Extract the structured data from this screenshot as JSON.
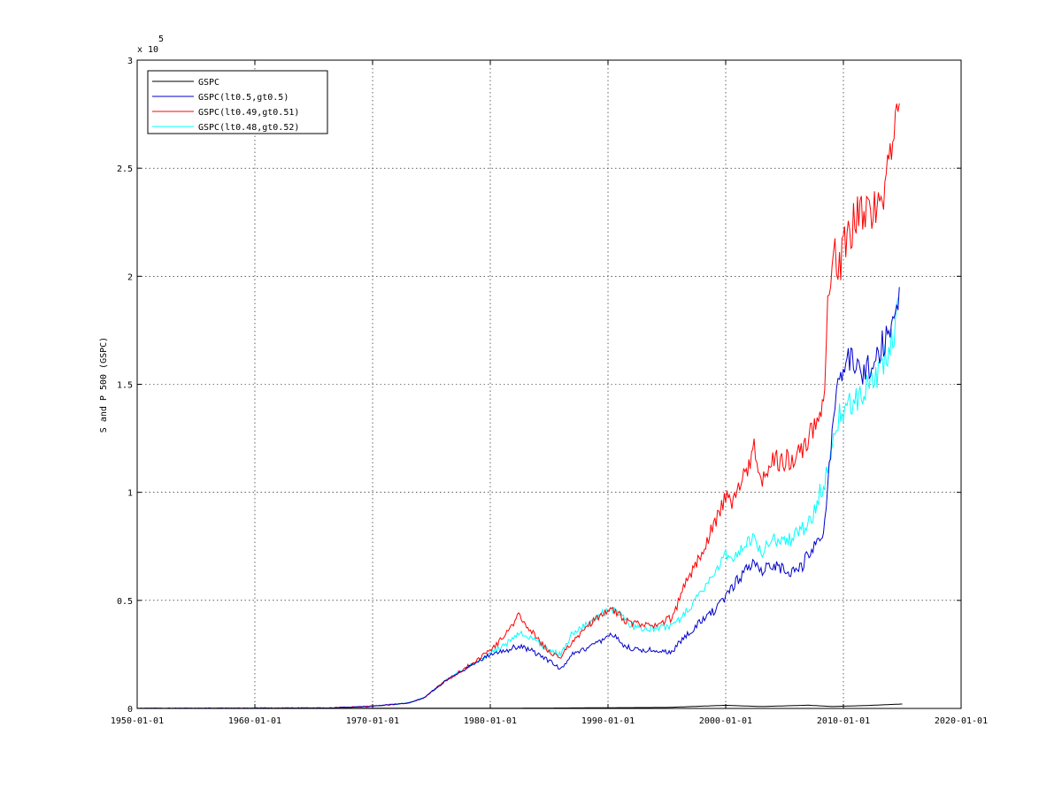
{
  "chart_data": {
    "type": "line",
    "title": "",
    "xlabel": "",
    "ylabel": "S and P 500 (GSPC)",
    "y_exponent_label": "x 10",
    "y_exponent": "5",
    "grid": true,
    "legend_position": "top-left",
    "xlim": [
      "1950-01-01",
      "2020-01-01"
    ],
    "ylim": [
      0,
      3
    ],
    "x_ticks": [
      "1950-01-01",
      "1960-01-01",
      "1970-01-01",
      "1980-01-01",
      "1990-01-01",
      "2000-01-01",
      "2010-01-01",
      "2020-01-01"
    ],
    "y_ticks": [
      "0",
      "0.5",
      "1",
      "1.5",
      "2",
      "2.5",
      "3"
    ],
    "series": [
      {
        "name": "GSPC",
        "color": "#000000",
        "x": [
          "1950-01-01",
          "1960-01-01",
          "1970-01-01",
          "1980-01-01",
          "1985-01-01",
          "1990-01-01",
          "1995-01-01",
          "2000-01-01",
          "2003-01-01",
          "2007-01-01",
          "2009-01-01",
          "2012-01-01",
          "2015-01-01"
        ],
        "y": [
          0.0002,
          0.0006,
          0.0009,
          0.0011,
          0.0017,
          0.0033,
          0.0046,
          0.0146,
          0.0088,
          0.015,
          0.009,
          0.0135,
          0.0206
        ]
      },
      {
        "name": "GSPC(lt0.5,gt0.5)",
        "color": "#0000cc",
        "x": [
          "1950-01-01",
          "1966-01-01",
          "1970-01-01",
          "1973-01-01",
          "1974-06-01",
          "1976-01-01",
          "1977-06-01",
          "1979-01-01",
          "1980-06-01",
          "1981-06-01",
          "1982-06-01",
          "1983-06-01",
          "1985-01-01",
          "1986-01-01",
          "1987-01-01",
          "1988-01-01",
          "1989-06-01",
          "1990-06-01",
          "1991-06-01",
          "1992-06-01",
          "1994-01-01",
          "1995-06-01",
          "1996-06-01",
          "1997-06-01",
          "1998-06-01",
          "1999-06-01",
          "2000-01-01",
          "2000-06-01",
          "2001-06-01",
          "2002-06-01",
          "2003-01-01",
          "2004-01-01",
          "2005-06-01",
          "2006-06-01",
          "2007-06-01",
          "2008-01-01",
          "2008-06-01",
          "2008-09-01",
          "2009-03-01",
          "2009-09-01",
          "2010-06-01",
          "2011-06-01",
          "2012-06-01",
          "2013-06-01",
          "2014-06-01",
          "2014-10-01"
        ],
        "y": [
          0,
          0.002,
          0.01,
          0.025,
          0.05,
          0.12,
          0.17,
          0.22,
          0.26,
          0.27,
          0.29,
          0.27,
          0.22,
          0.18,
          0.25,
          0.27,
          0.31,
          0.34,
          0.29,
          0.27,
          0.27,
          0.26,
          0.33,
          0.38,
          0.43,
          0.47,
          0.52,
          0.55,
          0.62,
          0.69,
          0.63,
          0.67,
          0.63,
          0.65,
          0.75,
          0.78,
          0.87,
          1.05,
          1.35,
          1.5,
          1.62,
          1.55,
          1.6,
          1.7,
          1.8,
          1.95
        ]
      },
      {
        "name": "GSPC(lt0.49,gt0.51)",
        "color": "#ff0000",
        "x": [
          "1950-01-01",
          "1966-01-01",
          "1970-01-01",
          "1973-01-01",
          "1974-06-01",
          "1976-01-01",
          "1977-06-01",
          "1979-01-01",
          "1980-06-01",
          "1981-06-01",
          "1982-06-01",
          "1983-06-01",
          "1985-01-01",
          "1986-01-01",
          "1987-01-01",
          "1988-01-01",
          "1989-06-01",
          "1990-06-01",
          "1991-06-01",
          "1992-06-01",
          "1994-01-01",
          "1995-06-01",
          "1996-06-01",
          "1997-06-01",
          "1998-06-01",
          "1999-06-01",
          "2000-01-01",
          "2000-06-01",
          "2001-06-01",
          "2002-06-01",
          "2003-01-01",
          "2004-01-01",
          "2005-06-01",
          "2006-06-01",
          "2007-06-01",
          "2008-01-01",
          "2008-06-01",
          "2008-09-01",
          "2009-03-01",
          "2009-09-01",
          "2010-06-01",
          "2011-06-01",
          "2012-06-01",
          "2013-06-01",
          "2014-06-01",
          "2014-10-01"
        ],
        "y": [
          0,
          0.002,
          0.01,
          0.025,
          0.05,
          0.12,
          0.17,
          0.23,
          0.29,
          0.35,
          0.43,
          0.36,
          0.26,
          0.24,
          0.31,
          0.37,
          0.43,
          0.46,
          0.41,
          0.39,
          0.38,
          0.42,
          0.55,
          0.67,
          0.78,
          0.9,
          0.98,
          0.95,
          1.05,
          1.2,
          1.05,
          1.15,
          1.15,
          1.2,
          1.3,
          1.35,
          1.5,
          1.85,
          2.1,
          2.05,
          2.2,
          2.3,
          2.3,
          2.4,
          2.7,
          2.8
        ]
      },
      {
        "name": "GSPC(lt0.48,gt0.52)",
        "color": "#00ffff",
        "x": [
          "1950-01-01",
          "1966-01-01",
          "1970-01-01",
          "1973-01-01",
          "1974-06-01",
          "1976-01-01",
          "1977-06-01",
          "1979-01-01",
          "1980-06-01",
          "1981-06-01",
          "1982-06-01",
          "1983-06-01",
          "1985-01-01",
          "1986-01-01",
          "1987-01-01",
          "1988-01-01",
          "1989-06-01",
          "1990-06-01",
          "1991-06-01",
          "1992-06-01",
          "1994-01-01",
          "1995-06-01",
          "1996-06-01",
          "1997-06-01",
          "1998-06-01",
          "1999-06-01",
          "2000-01-01",
          "2000-06-01",
          "2001-06-01",
          "2002-06-01",
          "2003-01-01",
          "2004-01-01",
          "2005-06-01",
          "2006-06-01",
          "2007-06-01",
          "2008-01-01",
          "2008-06-01",
          "2008-09-01",
          "2009-03-01",
          "2009-09-01",
          "2010-06-01",
          "2011-06-01",
          "2012-06-01",
          "2013-06-01",
          "2014-06-01",
          "2014-10-01"
        ],
        "y": [
          0,
          0.002,
          0.01,
          0.025,
          0.05,
          0.12,
          0.17,
          0.22,
          0.27,
          0.3,
          0.35,
          0.33,
          0.27,
          0.25,
          0.35,
          0.38,
          0.44,
          0.46,
          0.41,
          0.37,
          0.37,
          0.38,
          0.43,
          0.5,
          0.57,
          0.65,
          0.72,
          0.7,
          0.74,
          0.8,
          0.72,
          0.78,
          0.78,
          0.82,
          0.9,
          1.0,
          1.05,
          1.1,
          1.25,
          1.35,
          1.4,
          1.45,
          1.5,
          1.6,
          1.75,
          1.9
        ]
      }
    ]
  }
}
